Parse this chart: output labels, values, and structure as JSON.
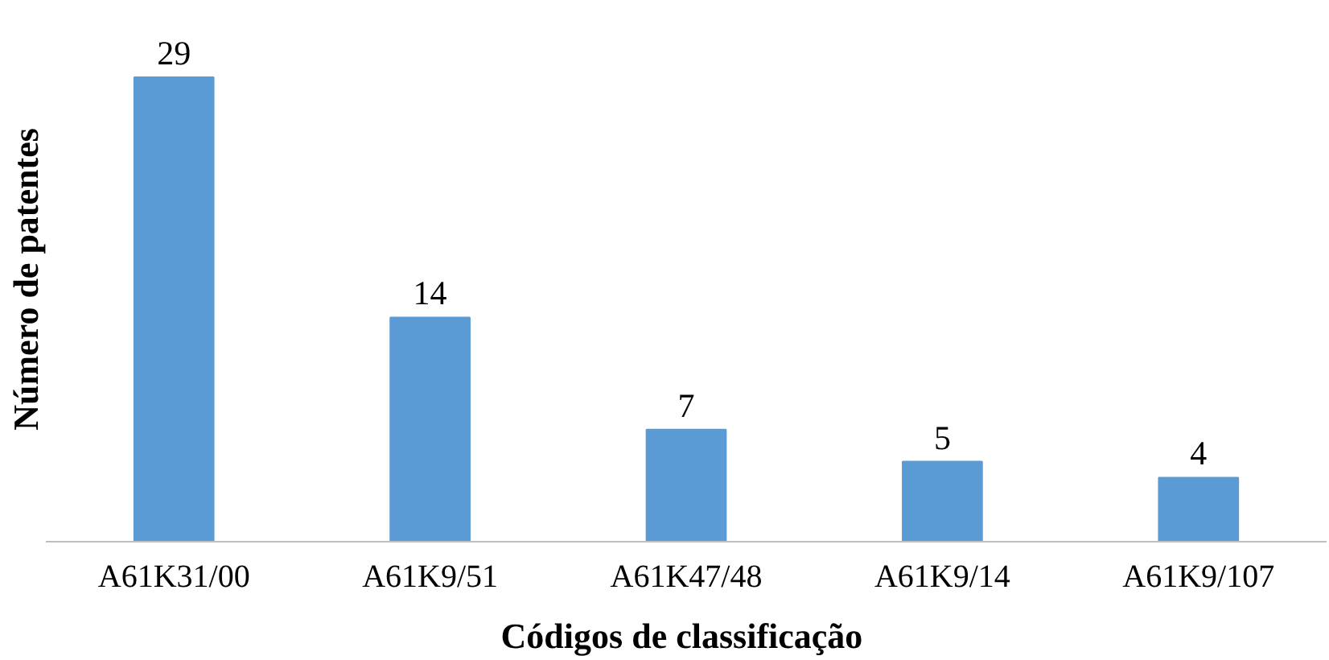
{
  "chart_data": {
    "type": "bar",
    "xlabel": "Códigos  de classificação",
    "ylabel": "Número de patentes",
    "categories": [
      "A61K31/00",
      "A61K9/51",
      "A61K47/48",
      "A61K9/14",
      "A61K9/107"
    ],
    "values": [
      29,
      14,
      7,
      5,
      4
    ],
    "color": "#5b9bd5",
    "data_labels": true,
    "grid": false
  }
}
